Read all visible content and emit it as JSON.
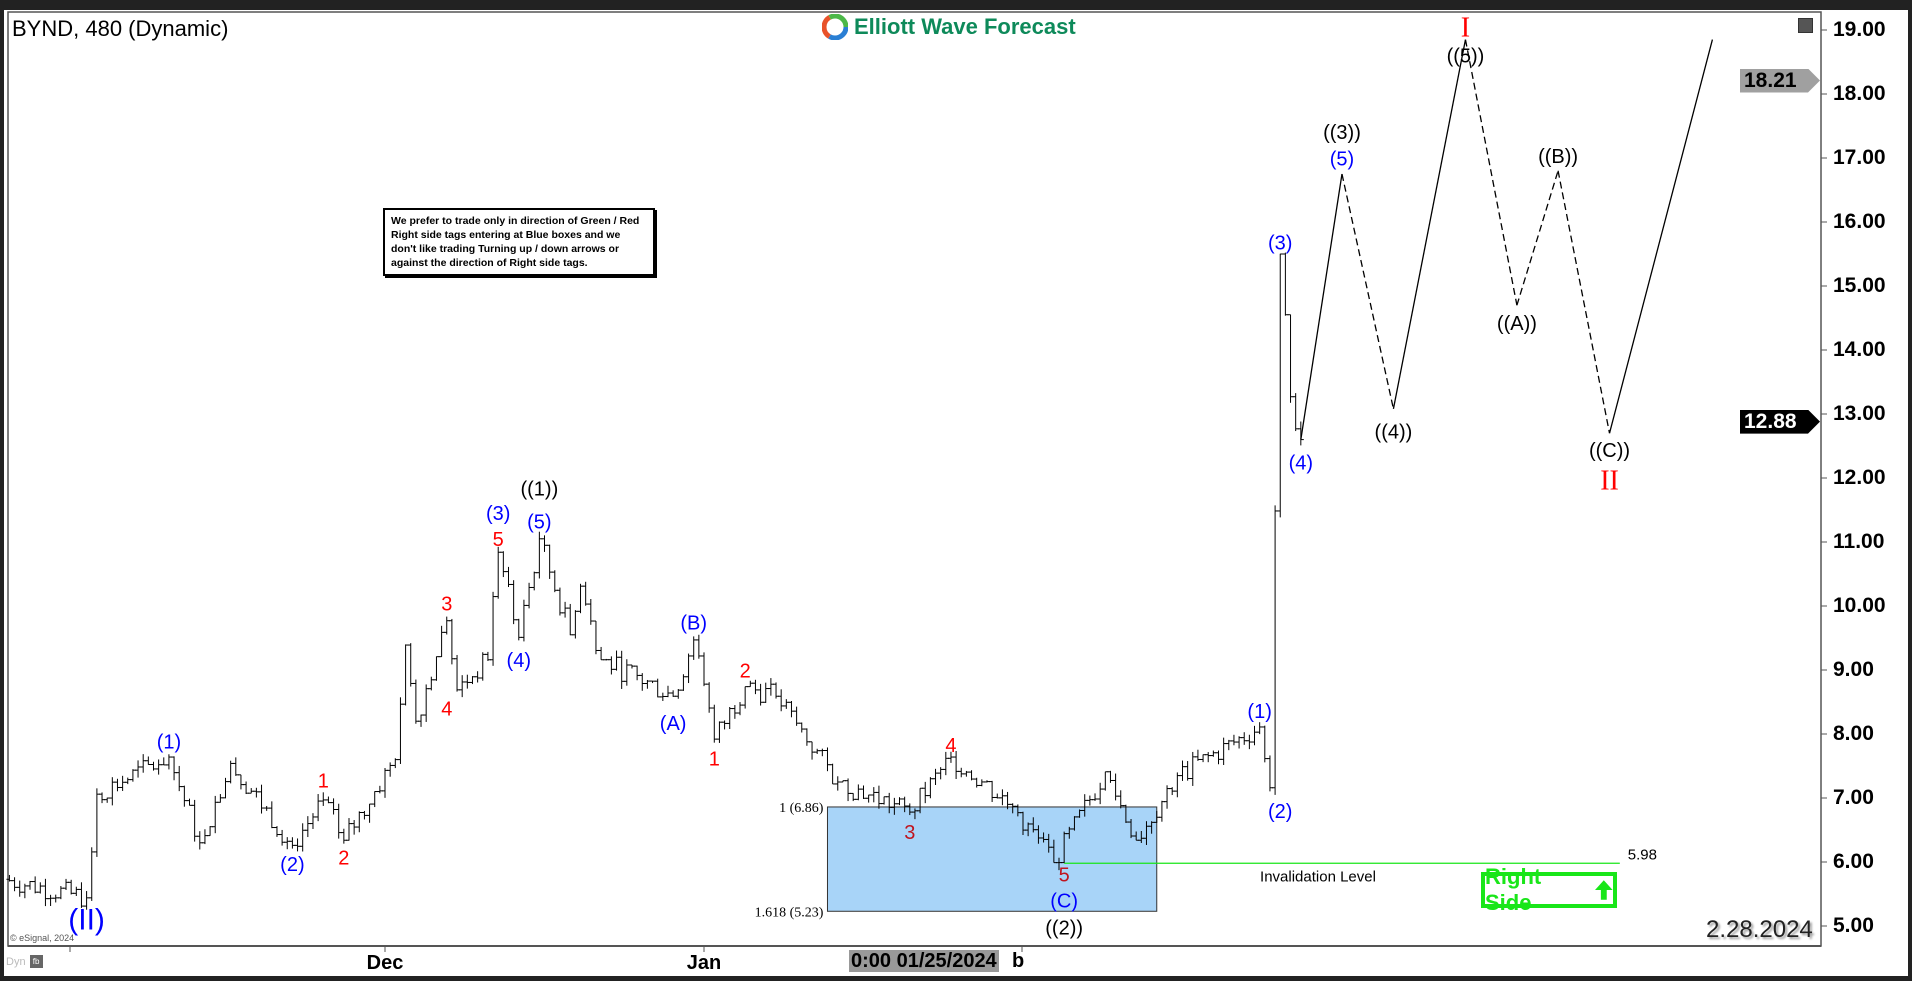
{
  "header": {
    "title": "BYND, 480 (Dynamic)",
    "logo_text": "Elliott Wave Forecast"
  },
  "notice": "We prefer to trade only in direction of Green / Red Right side tags entering at Blue boxes and we don't like trading Turning up / down arrows or against the direction of Right side tags.",
  "right_side_tag": {
    "label": "Right Side",
    "icon": "arrow-up-icon",
    "color": "#19e619"
  },
  "date_stamp": "2.28.2024",
  "copyright": "© eSignal, 2024",
  "dyn_label": "Dyn",
  "crosshair": {
    "label": "0:00 01/25/2024",
    "tail": "b"
  },
  "colors": {
    "blue_labels": "#0000ff",
    "red_labels": "#ff0000",
    "box_fill": "#a8d4f8",
    "invalidation": "#19e619"
  },
  "chart_data": {
    "type": "ohlc",
    "symbol": "BYND",
    "interval": "480",
    "x_ticks": [
      {
        "date": "2023-12-01",
        "label": "Dec"
      },
      {
        "date": "2024-01-01",
        "label": "Jan"
      }
    ],
    "y_ticks": [
      "5.00",
      "6.00",
      "7.00",
      "8.00",
      "9.00",
      "10.00",
      "11.00",
      "12.00",
      "13.00",
      "14.00",
      "15.00",
      "16.00",
      "17.00",
      "18.00",
      "19.00"
    ],
    "ylim": [
      4.75,
      19.3
    ],
    "price_path": [
      [
        "2023-10-25",
        5.73
      ],
      [
        "2023-11-02",
        5.44
      ],
      [
        "2023-11-03",
        7.06
      ],
      [
        "2023-11-10",
        7.64
      ],
      [
        "2023-11-13",
        6.3
      ],
      [
        "2023-11-16",
        7.54
      ],
      [
        "2023-11-22",
        6.26
      ],
      [
        "2023-11-25",
        6.97
      ],
      [
        "2023-11-27",
        6.34
      ],
      [
        "2023-12-02",
        7.6
      ],
      [
        "2023-12-03",
        9.39
      ],
      [
        "2023-12-04",
        8.2
      ],
      [
        "2023-12-07",
        9.77
      ],
      [
        "2023-12-08",
        8.69
      ],
      [
        "2023-12-11",
        9.16
      ],
      [
        "2023-12-12",
        10.84
      ],
      [
        "2023-12-14",
        9.51
      ],
      [
        "2023-12-16",
        11.05
      ],
      [
        "2023-12-19",
        9.55
      ],
      [
        "2023-12-20",
        10.31
      ],
      [
        "2023-12-22",
        9.16
      ],
      [
        "2023-12-29",
        8.59
      ],
      [
        "2023-12-31",
        9.47
      ],
      [
        "2024-01-02",
        7.92
      ],
      [
        "2024-01-05",
        8.74
      ],
      [
        "2024-01-08",
        8.59
      ],
      [
        "2024-01-14",
        7.25
      ],
      [
        "2024-01-21",
        6.78
      ],
      [
        "2024-01-25",
        7.64
      ],
      [
        "2024-01-31",
        6.87
      ],
      [
        "2024-02-04",
        5.99
      ],
      [
        "2024-02-09",
        7.41
      ],
      [
        "2024-02-12",
        6.34
      ],
      [
        "2024-02-16",
        7.35
      ],
      [
        "2024-02-24",
        8.11
      ],
      [
        "2024-02-25",
        7.16
      ],
      [
        "2024-02-26",
        15.5
      ],
      [
        "2024-02-27",
        13.27
      ],
      [
        "2024-02-28",
        12.6
      ]
    ],
    "projection": [
      {
        "from": [
          "2024-02-28",
          12.6
        ],
        "to": [
          "2024-03-03",
          16.75
        ],
        "style": "solid"
      },
      {
        "from": [
          "2024-03-03",
          16.75
        ],
        "to": [
          "2024-03-08",
          13.08
        ],
        "style": "dashed"
      },
      {
        "from": [
          "2024-03-08",
          13.08
        ],
        "to": [
          "2024-03-15",
          18.85
        ],
        "style": "solid"
      },
      {
        "from": [
          "2024-03-15",
          18.85
        ],
        "to": [
          "2024-03-20",
          14.7
        ],
        "style": "dashed"
      },
      {
        "from": [
          "2024-03-20",
          14.7
        ],
        "to": [
          "2024-03-24",
          16.8
        ],
        "style": "dashed"
      },
      {
        "from": [
          "2024-03-24",
          16.8
        ],
        "to": [
          "2024-03-29",
          12.7
        ],
        "style": "dashed"
      },
      {
        "from": [
          "2024-03-29",
          12.7
        ],
        "to": [
          "2024-04-08",
          18.85
        ],
        "style": "solid"
      }
    ],
    "wave_labels": [
      {
        "text": "(II)",
        "color": "blue",
        "date": "2023-11-02",
        "price": 5.11,
        "size": "large"
      },
      {
        "text": "(1)",
        "color": "blue",
        "date": "2023-11-10",
        "price": 7.88
      },
      {
        "text": "(2)",
        "color": "blue",
        "date": "2023-11-22",
        "price": 5.97
      },
      {
        "text": "1",
        "color": "red",
        "date": "2023-11-25",
        "price": 7.27
      },
      {
        "text": "2",
        "color": "red",
        "date": "2023-11-27",
        "price": 6.07
      },
      {
        "text": "3",
        "color": "red",
        "date": "2023-12-07",
        "price": 10.04
      },
      {
        "text": "4",
        "color": "red",
        "date": "2023-12-07",
        "price": 8.4
      },
      {
        "text": "5",
        "color": "red",
        "date": "2023-12-12",
        "price": 11.05
      },
      {
        "text": "(3)",
        "color": "blue",
        "date": "2023-12-12",
        "price": 11.42
      },
      {
        "text": "(4)",
        "color": "blue",
        "date": "2023-12-14",
        "price": 9.16
      },
      {
        "text": "(5)",
        "color": "blue",
        "date": "2023-12-16",
        "price": 11.32
      },
      {
        "text": "((1))",
        "color": "black",
        "date": "2023-12-16",
        "price": 11.74
      },
      {
        "text": "(B)",
        "color": "blue",
        "date": "2023-12-31",
        "price": 9.74
      },
      {
        "text": "(A)",
        "color": "blue",
        "date": "2023-12-29",
        "price": 8.17
      },
      {
        "text": "2",
        "color": "red",
        "date": "2024-01-05",
        "price": 8.99
      },
      {
        "text": "1",
        "color": "red",
        "date": "2024-01-02",
        "price": 7.62
      },
      {
        "text": "3",
        "color": "darkred",
        "date": "2024-01-21",
        "price": 6.47
      },
      {
        "text": "4",
        "color": "red",
        "date": "2024-01-25",
        "price": 7.83
      },
      {
        "text": "5",
        "color": "darkred",
        "date": "2024-02-05",
        "price": 5.74
      },
      {
        "text": "(C)",
        "color": "blue",
        "date": "2024-02-05",
        "price": 5.4
      },
      {
        "text": "((2))",
        "color": "black",
        "date": "2024-02-05",
        "price": 4.98
      },
      {
        "text": "(1)",
        "color": "blue",
        "date": "2024-02-24",
        "price": 8.36
      },
      {
        "text": "(2)",
        "color": "blue",
        "date": "2024-02-26",
        "price": 6.8
      },
      {
        "text": "(3)",
        "color": "blue",
        "date": "2024-02-26",
        "price": 15.68
      },
      {
        "text": "(4)",
        "color": "blue",
        "date": "2024-02-28",
        "price": 12.24
      },
      {
        "text": "((3))",
        "color": "black",
        "date": "2024-03-03",
        "price": 17.41
      },
      {
        "text": "(5)",
        "color": "blue",
        "date": "2024-03-03",
        "price": 16.99
      },
      {
        "text": "((4))",
        "color": "black",
        "date": "2024-03-08",
        "price": 12.73
      },
      {
        "text": "((5))",
        "color": "black",
        "date": "2024-03-15",
        "price": 18.6
      },
      {
        "text": "I",
        "color": "red",
        "date": "2024-03-15",
        "price": 19.02
      },
      {
        "text": "((B))",
        "color": "black",
        "date": "2024-03-24",
        "price": 17.03
      },
      {
        "text": "((A))",
        "color": "black",
        "date": "2024-03-20",
        "price": 14.42
      },
      {
        "text": "((C))",
        "color": "black",
        "date": "2024-03-29",
        "price": 12.41
      },
      {
        "text": "II",
        "color": "red",
        "date": "2024-03-29",
        "price": 11.97
      }
    ],
    "fib_box": {
      "start": "2024-01-13",
      "end": "2024-02-14",
      "top": 6.86,
      "bottom": 5.23,
      "top_label": "1 (6.86)",
      "bottom_label": "1.618 (5.23)"
    },
    "invalidation": {
      "start": "2024-02-05",
      "end": "2024-03-30",
      "price": 5.98,
      "value_label": "5.98",
      "text": "Invalidation Level"
    },
    "price_tags": [
      {
        "value": "18.21",
        "price": 18.21,
        "color": "#a0a0a0"
      },
      {
        "value": "12.88",
        "price": 12.88,
        "color": "#000000"
      }
    ]
  }
}
